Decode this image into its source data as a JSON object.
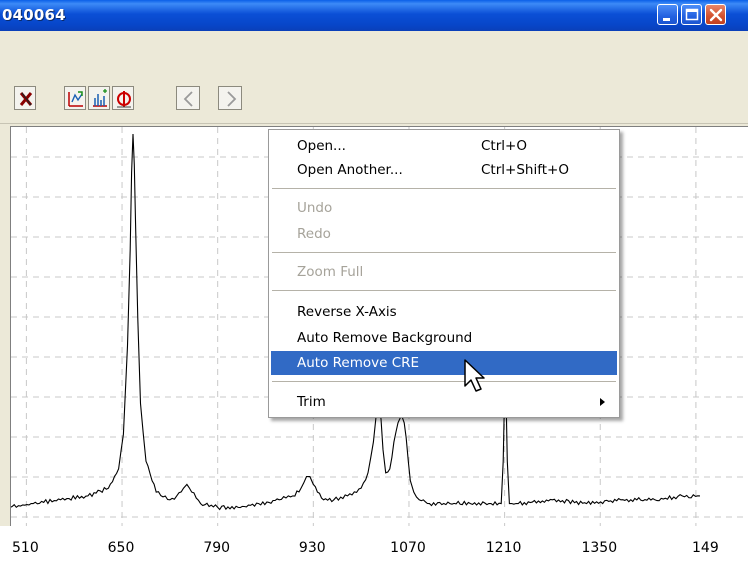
{
  "window": {
    "title": "040064",
    "controls": [
      "minimize-icon",
      "maximize-icon",
      "close-icon"
    ]
  },
  "toolbar": {
    "buttons": [
      "delete-x-icon",
      "auto-background-icon",
      "peak-pick-icon",
      "remove-cre-icon",
      "back-arrow-icon",
      "forward-arrow-icon"
    ]
  },
  "context_menu": {
    "items": [
      {
        "label": "Open...",
        "shortcut": "Ctrl+O",
        "enabled": true
      },
      {
        "label": "Open Another...",
        "shortcut": "Ctrl+Shift+O",
        "enabled": true
      },
      {
        "label": "Undo",
        "shortcut": "",
        "enabled": false
      },
      {
        "label": "Redo",
        "shortcut": "",
        "enabled": false
      },
      {
        "label": "Zoom Full",
        "shortcut": "",
        "enabled": false
      },
      {
        "label": "Reverse X-Axis",
        "shortcut": "",
        "enabled": true
      },
      {
        "label": "Auto Remove Background",
        "shortcut": "",
        "enabled": true
      },
      {
        "label": "Auto Remove CRE",
        "shortcut": "",
        "enabled": true,
        "selected": true
      },
      {
        "label": "Trim",
        "shortcut": "",
        "enabled": true,
        "submenu": true
      }
    ]
  },
  "chart_data": {
    "type": "line",
    "x_ticks": [
      "510",
      "650",
      "790",
      "930",
      "1070",
      "1210",
      "1350",
      "149"
    ],
    "xlim": [
      486,
      1496
    ],
    "grid": true,
    "series": [
      {
        "x": [
          486,
          520,
          560,
          600,
          630,
          645,
          652,
          658,
          662,
          664,
          666,
          668,
          670,
          673,
          677,
          685,
          700,
          720,
          730,
          740,
          745,
          752,
          765,
          790,
          820,
          850,
          880,
          900,
          912,
          920,
          925,
          930,
          936,
          945,
          960,
          980,
          1000,
          1010,
          1018,
          1022,
          1026,
          1029,
          1032,
          1036,
          1042,
          1048,
          1054,
          1059,
          1063,
          1066,
          1069,
          1072,
          1077,
          1085,
          1100,
          1130,
          1160,
          1190,
          1205,
          1208,
          1211,
          1214,
          1217,
          1230,
          1280,
          1330,
          1380,
          1430,
          1470,
          1496
        ],
        "y": [
          0.03,
          0.04,
          0.05,
          0.06,
          0.08,
          0.13,
          0.22,
          0.45,
          0.7,
          0.9,
          1.0,
          0.92,
          0.75,
          0.52,
          0.3,
          0.15,
          0.07,
          0.05,
          0.06,
          0.08,
          0.09,
          0.07,
          0.04,
          0.03,
          0.03,
          0.04,
          0.05,
          0.06,
          0.08,
          0.11,
          0.11,
          0.09,
          0.07,
          0.05,
          0.05,
          0.06,
          0.08,
          0.12,
          0.2,
          0.27,
          0.3,
          0.26,
          0.18,
          0.12,
          0.13,
          0.2,
          0.25,
          0.27,
          0.25,
          0.21,
          0.15,
          0.1,
          0.07,
          0.05,
          0.04,
          0.04,
          0.04,
          0.04,
          0.04,
          0.15,
          0.42,
          0.15,
          0.04,
          0.04,
          0.05,
          0.04,
          0.05,
          0.05,
          0.06,
          0.06
        ]
      }
    ]
  }
}
